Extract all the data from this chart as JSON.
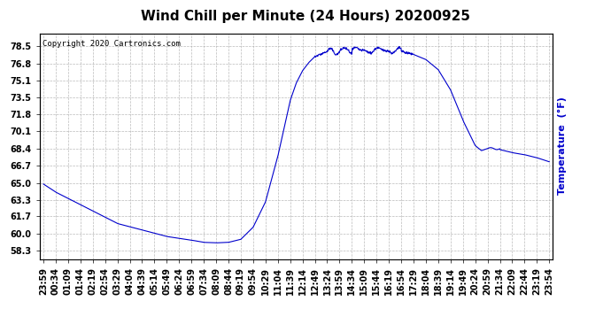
{
  "title": "Wind Chill per Minute (24 Hours) 20200925",
  "ylabel": "Temperature  (°F)",
  "copyright_text": "Copyright 2020 Cartronics.com",
  "line_color": "#0000cc",
  "background_color": "#ffffff",
  "grid_color": "#aaaaaa",
  "yticks": [
    58.3,
    60.0,
    61.7,
    63.3,
    65.0,
    66.7,
    68.4,
    70.1,
    71.8,
    73.5,
    75.1,
    76.8,
    78.5
  ],
  "ylim": [
    57.5,
    79.8
  ],
  "xtick_labels": [
    "23:59",
    "00:34",
    "01:09",
    "01:44",
    "02:19",
    "02:54",
    "03:29",
    "04:04",
    "04:39",
    "05:14",
    "05:49",
    "06:24",
    "06:59",
    "07:34",
    "08:09",
    "08:44",
    "09:19",
    "09:54",
    "10:29",
    "11:04",
    "11:39",
    "12:14",
    "12:49",
    "13:24",
    "13:59",
    "14:34",
    "15:09",
    "15:44",
    "16:19",
    "16:54",
    "17:29",
    "18:04",
    "18:39",
    "19:14",
    "19:49",
    "20:24",
    "20:59",
    "21:34",
    "22:09",
    "22:44",
    "23:19",
    "23:54"
  ],
  "title_fontsize": 11,
  "label_fontsize": 8,
  "tick_fontsize": 7,
  "copyright_fontsize": 6.5
}
